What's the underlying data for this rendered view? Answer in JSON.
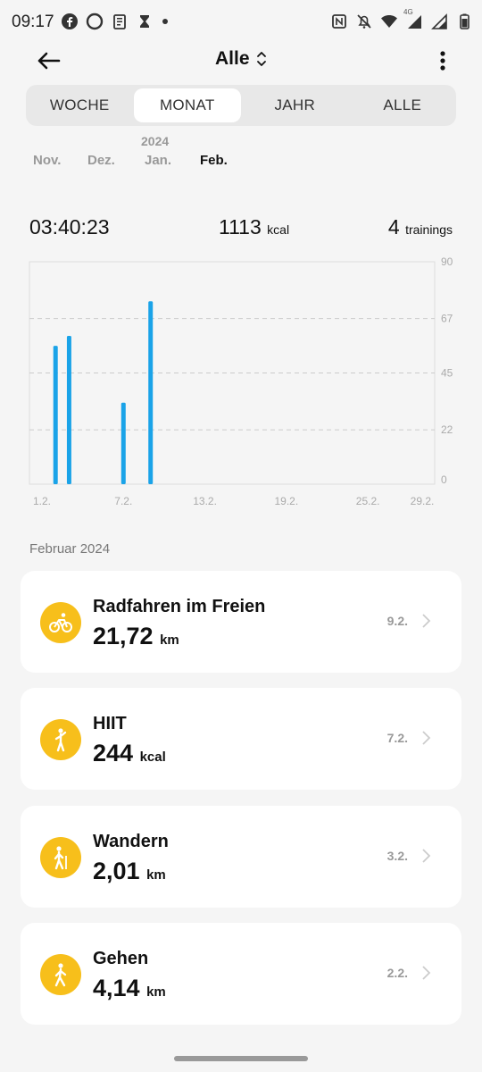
{
  "status_bar": {
    "time": "09:17",
    "left_icons": [
      "facebook-icon",
      "threads-icon",
      "clipboard-icon",
      "hourglass-icon",
      "dot-icon"
    ],
    "right_icons": [
      "nfc-icon",
      "mute-icon",
      "wifi-icon",
      "signal-4g-icon",
      "signal-icon",
      "battery-icon"
    ],
    "network_label": "4G"
  },
  "header": {
    "title": "Alle"
  },
  "segments": [
    {
      "label": "WOCHE",
      "active": false
    },
    {
      "label": "MONAT",
      "active": true
    },
    {
      "label": "JAHR",
      "active": false
    },
    {
      "label": "ALLE",
      "active": false
    }
  ],
  "month_strip": {
    "year": "2024",
    "months": [
      {
        "label": "Nov.",
        "active": false
      },
      {
        "label": "Dez.",
        "active": false
      },
      {
        "label": "Jan.",
        "active": false
      },
      {
        "label": "Feb.",
        "active": true
      }
    ]
  },
  "summary": {
    "duration": "03:40:23",
    "kcal_value": "1113",
    "kcal_unit": "kcal",
    "trainings_value": "4",
    "trainings_unit": "trainings"
  },
  "chart_data": {
    "type": "bar",
    "x_tick_labels": [
      "1.2.",
      "7.2.",
      "13.2.",
      "19.2.",
      "25.2.",
      "29.2."
    ],
    "y_tick_labels": [
      "0",
      "22",
      "45",
      "67",
      "90"
    ],
    "ylim": [
      0,
      90
    ],
    "bars": [
      {
        "day": 2,
        "value": 56
      },
      {
        "day": 3,
        "value": 60
      },
      {
        "day": 7,
        "value": 33
      },
      {
        "day": 9,
        "value": 74
      }
    ],
    "color": "#1aa3e8",
    "grid": "dashed"
  },
  "section_title": "Februar 2024",
  "activities": [
    {
      "title": "Radfahren im Freien",
      "value": "21,72",
      "unit": "km",
      "date": "9.2.",
      "icon": "cycling-icon"
    },
    {
      "title": "HIIT",
      "value": "244",
      "unit": "kcal",
      "date": "7.2.",
      "icon": "hiit-icon"
    },
    {
      "title": "Wandern",
      "value": "2,01",
      "unit": "km",
      "date": "3.2.",
      "icon": "hiking-icon"
    },
    {
      "title": "Gehen",
      "value": "4,14",
      "unit": "km",
      "date": "2.2.",
      "icon": "walking-icon"
    }
  ],
  "colors": {
    "accent": "#f7bf1b",
    "bar": "#1aa3e8",
    "background": "#f5f5f5"
  }
}
